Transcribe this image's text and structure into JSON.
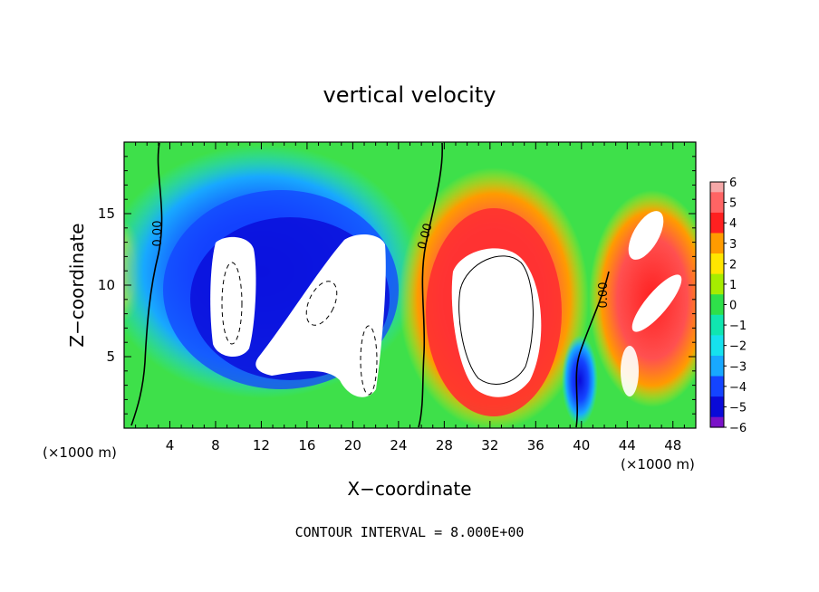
{
  "chart_data": {
    "type": "heatmap",
    "title": "vertical velocity",
    "xlabel": "X−coordinate",
    "ylabel": "Z−coordinate",
    "x_unit_label": "(×1000 m)",
    "y_unit_label": "(×1000 m)",
    "xlim": [
      0,
      50
    ],
    "ylim": [
      0,
      20
    ],
    "x_ticks": [
      "4",
      "8",
      "12",
      "16",
      "20",
      "24",
      "28",
      "32",
      "36",
      "40",
      "44",
      "48"
    ],
    "y_ticks": [
      "5",
      "10",
      "15"
    ],
    "colorbar_labels": [
      "6",
      "5",
      "4",
      "3",
      "2",
      "1",
      "0",
      "−1",
      "−2",
      "−3",
      "−4",
      "−5",
      "−6"
    ],
    "colorbar_range": [
      -6,
      6
    ],
    "contour_labels": [
      "0.00",
      "0.00",
      "0.00"
    ],
    "footer": "CONTOUR INTERVAL = 8.000E+00",
    "colors": {
      "cb_pos6": "#f5a8a8",
      "cb_pos5": "#ff6464",
      "cb_pos4": "#ff2020",
      "cb_pos3": "#ff9b00",
      "cb_pos2": "#ffe600",
      "cb_pos1": "#a6ec00",
      "cb_zero": "#2ee04a",
      "cb_neg1": "#10e6b0",
      "cb_neg2": "#16e2ee",
      "cb_neg3": "#18a8ff",
      "cb_neg4": "#1444ff",
      "cb_neg5": "#0a0ad8",
      "cb_neg6": "#7a12c8"
    }
  }
}
